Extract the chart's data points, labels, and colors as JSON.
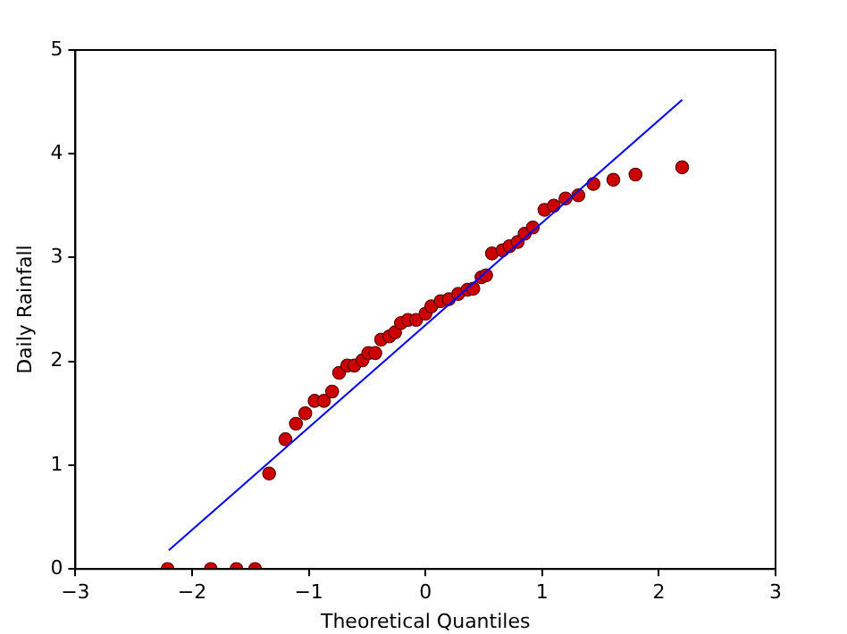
{
  "chart_data": {
    "type": "scatter",
    "xlabel": "Theoretical Quantiles",
    "ylabel": "Daily Rainfall",
    "xlim": [
      -3,
      3
    ],
    "ylim": [
      0,
      5
    ],
    "xticks": [
      -3,
      -2,
      -1,
      0,
      1,
      2,
      3
    ],
    "yticks": [
      0,
      1,
      2,
      3,
      4,
      5
    ],
    "grid": false,
    "legend": false,
    "marker": "circle",
    "series": [
      {
        "type": "scatter",
        "color": "#cc0000",
        "x": [
          -2.21,
          -1.84,
          -1.62,
          -1.46,
          -1.34,
          -1.2,
          -1.11,
          -1.03,
          -0.95,
          -0.87,
          -0.8,
          -0.74,
          -0.67,
          -0.61,
          -0.54,
          -0.49,
          -0.43,
          -0.38,
          -0.31,
          -0.26,
          -0.21,
          -0.15,
          -0.08,
          0,
          0.05,
          0.13,
          0.2,
          0.28,
          0.36,
          0.41,
          0.48,
          0.52,
          0.57,
          0.66,
          0.72,
          0.79,
          0.85,
          0.92,
          1.02,
          1.1,
          1.2,
          1.31,
          1.44,
          1.61,
          1.8,
          2.2
        ],
        "values": [
          0,
          0,
          0,
          0,
          0.92,
          1.25,
          1.4,
          1.5,
          1.62,
          1.62,
          1.71,
          1.89,
          1.96,
          1.96,
          2.01,
          2.08,
          2.08,
          2.21,
          2.24,
          2.28,
          2.37,
          2.4,
          2.4,
          2.46,
          2.53,
          2.58,
          2.6,
          2.65,
          2.69,
          2.7,
          2.81,
          2.83,
          3.04,
          3.07,
          3.11,
          3.15,
          3.23,
          3.29,
          3.46,
          3.5,
          3.57,
          3.6,
          3.71,
          3.75,
          3.8,
          3.87
        ]
      },
      {
        "type": "line",
        "color": "#0000ff",
        "line_style": "solid",
        "marker": "none",
        "x": [
          -2.2,
          2.2
        ],
        "values": [
          0.18,
          4.52
        ]
      }
    ]
  }
}
